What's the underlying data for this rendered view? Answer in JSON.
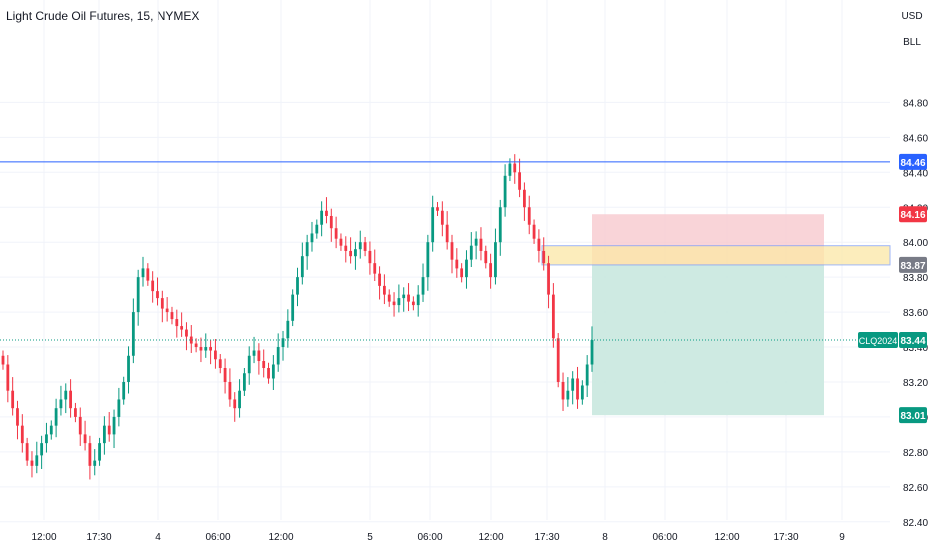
{
  "header": {
    "title": "Light Crude Oil Futures, 15, NYMEX"
  },
  "scale_buttons": {
    "currency": "USD",
    "unit": "BLL"
  },
  "colors": {
    "up": "#089981",
    "down": "#f23645",
    "grid": "#f0f3fa",
    "axis_text": "#131722",
    "hline": "#2962ff",
    "last_price": "#089981",
    "stop_zone": "#f7c9ce",
    "target_zone": "#c9e8df",
    "entry_zone": "#fce8a6",
    "entry_border": "#7f9ef5"
  },
  "chart_data": {
    "type": "candlestick",
    "x_ticks": [
      "12:00",
      "17:30",
      "4",
      "06:00",
      "12:00",
      "5",
      "06:00",
      "12:00",
      "17:30",
      "8",
      "06:00",
      "12:00",
      "17:30",
      "9"
    ],
    "y_ticks": [
      "84.80",
      "84.60",
      "84.40",
      "84.20",
      "84.00",
      "83.80",
      "83.60",
      "83.40",
      "83.20",
      "83.00",
      "82.80",
      "82.60",
      "82.40"
    ],
    "ylim": [
      82.37,
      85.08
    ],
    "horizontal_line": {
      "price": 84.46,
      "label": "84.46"
    },
    "last_price": {
      "price": 83.44,
      "symbol": "CLQ2024",
      "label": "83.44"
    },
    "position": {
      "stop": {
        "price": 84.16,
        "label": "84.16"
      },
      "entry": {
        "price": 83.87,
        "label": "83.87",
        "top": 83.98
      },
      "target": {
        "price": 83.01,
        "label": "83.01"
      }
    },
    "series_ohlc_start": 83.35,
    "series_path": [
      83.3,
      83.15,
      83.05,
      82.95,
      82.85,
      82.75,
      82.72,
      82.78,
      82.85,
      82.9,
      82.95,
      83.05,
      83.1,
      83.15,
      83.05,
      83.0,
      82.9,
      82.85,
      82.72,
      82.75,
      82.85,
      82.95,
      82.9,
      83.0,
      83.1,
      83.2,
      83.35,
      83.6,
      83.8,
      83.85,
      83.78,
      83.72,
      83.68,
      83.62,
      83.6,
      83.56,
      83.52,
      83.5,
      83.46,
      83.42,
      83.4,
      83.38,
      83.4,
      83.38,
      83.33,
      83.28,
      83.2,
      83.1,
      83.05,
      83.15,
      83.25,
      83.35,
      83.38,
      83.32,
      83.28,
      83.22,
      83.3,
      83.4,
      83.45,
      83.55,
      83.7,
      83.8,
      83.92,
      84.0,
      84.05,
      84.1,
      84.18,
      84.15,
      84.08,
      84.02,
      83.98,
      83.95,
      83.92,
      83.96,
      84.0,
      83.95,
      83.88,
      83.82,
      83.75,
      83.7,
      83.66,
      83.64,
      83.68,
      83.7,
      83.66,
      83.64,
      83.7,
      83.8,
      84.0,
      84.2,
      84.18,
      84.1,
      84.0,
      83.9,
      83.85,
      83.8,
      83.9,
      83.98,
      84.02,
      83.95,
      83.88,
      83.8,
      84.0,
      84.2,
      84.38,
      84.45,
      84.4,
      84.3,
      84.2,
      84.1,
      84.02,
      83.95,
      83.88,
      83.7,
      83.45,
      83.2,
      83.1,
      83.15,
      83.22,
      83.1,
      83.18,
      83.3,
      83.44
    ]
  }
}
